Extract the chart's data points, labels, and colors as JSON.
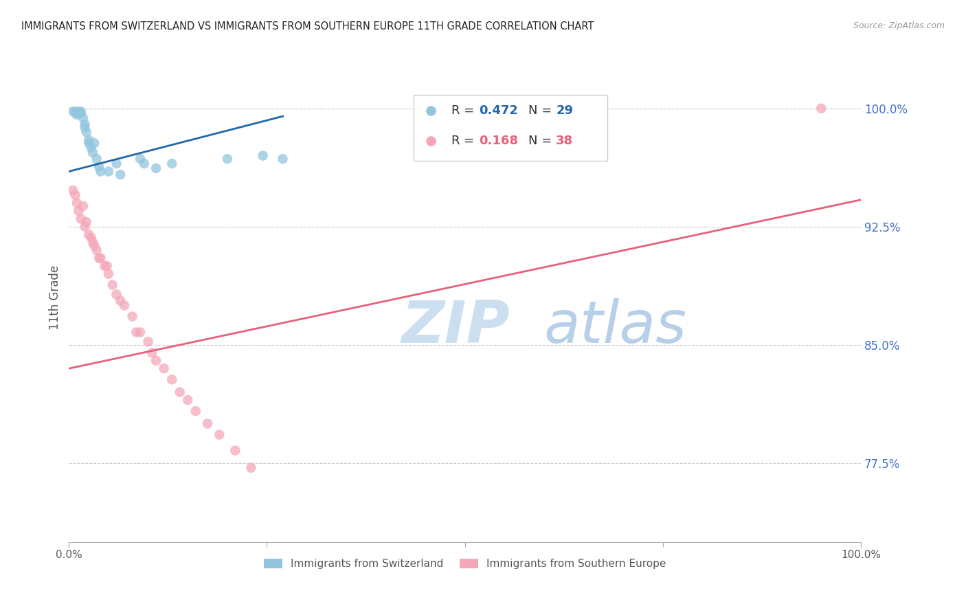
{
  "title": "IMMIGRANTS FROM SWITZERLAND VS IMMIGRANTS FROM SOUTHERN EUROPE 11TH GRADE CORRELATION CHART",
  "source": "Source: ZipAtlas.com",
  "ylabel": "11th Grade",
  "y_tick_labels": [
    "100.0%",
    "92.5%",
    "85.0%",
    "77.5%"
  ],
  "y_tick_values": [
    1.0,
    0.925,
    0.85,
    0.775
  ],
  "x_lim": [
    0.0,
    1.0
  ],
  "y_lim": [
    0.725,
    1.035
  ],
  "legend_blue_r": "0.472",
  "legend_blue_n": "29",
  "legend_pink_r": "0.168",
  "legend_pink_n": "38",
  "legend_label_blue": "Immigrants from Switzerland",
  "legend_label_pink": "Immigrants from Southern Europe",
  "blue_color": "#92c5de",
  "pink_color": "#f4a7b9",
  "blue_line_color": "#2166ac",
  "pink_line_color": "#e8607a",
  "watermark_zip_color": "#c8dff0",
  "watermark_atlas_color": "#b0c8e0",
  "grid_color": "#cccccc",
  "title_color": "#222222",
  "axis_label_color": "#555555",
  "right_tick_color": "#4472c4",
  "blue_scatter_x": [
    0.005,
    0.008,
    0.01,
    0.01,
    0.012,
    0.015,
    0.015,
    0.018,
    0.02,
    0.02,
    0.022,
    0.025,
    0.025,
    0.028,
    0.03,
    0.032,
    0.035,
    0.038,
    0.04,
    0.05,
    0.06,
    0.065,
    0.09,
    0.095,
    0.11,
    0.13,
    0.2,
    0.245,
    0.27
  ],
  "blue_scatter_y": [
    0.998,
    0.998,
    0.997,
    0.996,
    0.998,
    0.998,
    0.997,
    0.994,
    0.99,
    0.988,
    0.985,
    0.98,
    0.978,
    0.975,
    0.972,
    0.978,
    0.968,
    0.963,
    0.96,
    0.96,
    0.965,
    0.958,
    0.968,
    0.965,
    0.962,
    0.965,
    0.968,
    0.97,
    0.968
  ],
  "pink_scatter_x": [
    0.005,
    0.008,
    0.01,
    0.012,
    0.015,
    0.018,
    0.02,
    0.022,
    0.025,
    0.028,
    0.03,
    0.032,
    0.035,
    0.038,
    0.04,
    0.045,
    0.048,
    0.05,
    0.055,
    0.06,
    0.065,
    0.07,
    0.08,
    0.085,
    0.09,
    0.1,
    0.105,
    0.11,
    0.12,
    0.13,
    0.14,
    0.15,
    0.16,
    0.175,
    0.19,
    0.21,
    0.23,
    0.95
  ],
  "pink_scatter_y": [
    0.948,
    0.945,
    0.94,
    0.935,
    0.93,
    0.938,
    0.925,
    0.928,
    0.92,
    0.918,
    0.915,
    0.913,
    0.91,
    0.905,
    0.905,
    0.9,
    0.9,
    0.895,
    0.888,
    0.882,
    0.878,
    0.875,
    0.868,
    0.858,
    0.858,
    0.852,
    0.845,
    0.84,
    0.835,
    0.828,
    0.82,
    0.815,
    0.808,
    0.8,
    0.793,
    0.783,
    0.772,
    1.0
  ],
  "blue_line_x": [
    0.0,
    0.27
  ],
  "blue_line_y": [
    0.96,
    0.995
  ],
  "pink_line_x": [
    0.0,
    1.0
  ],
  "pink_line_y": [
    0.835,
    0.942
  ]
}
